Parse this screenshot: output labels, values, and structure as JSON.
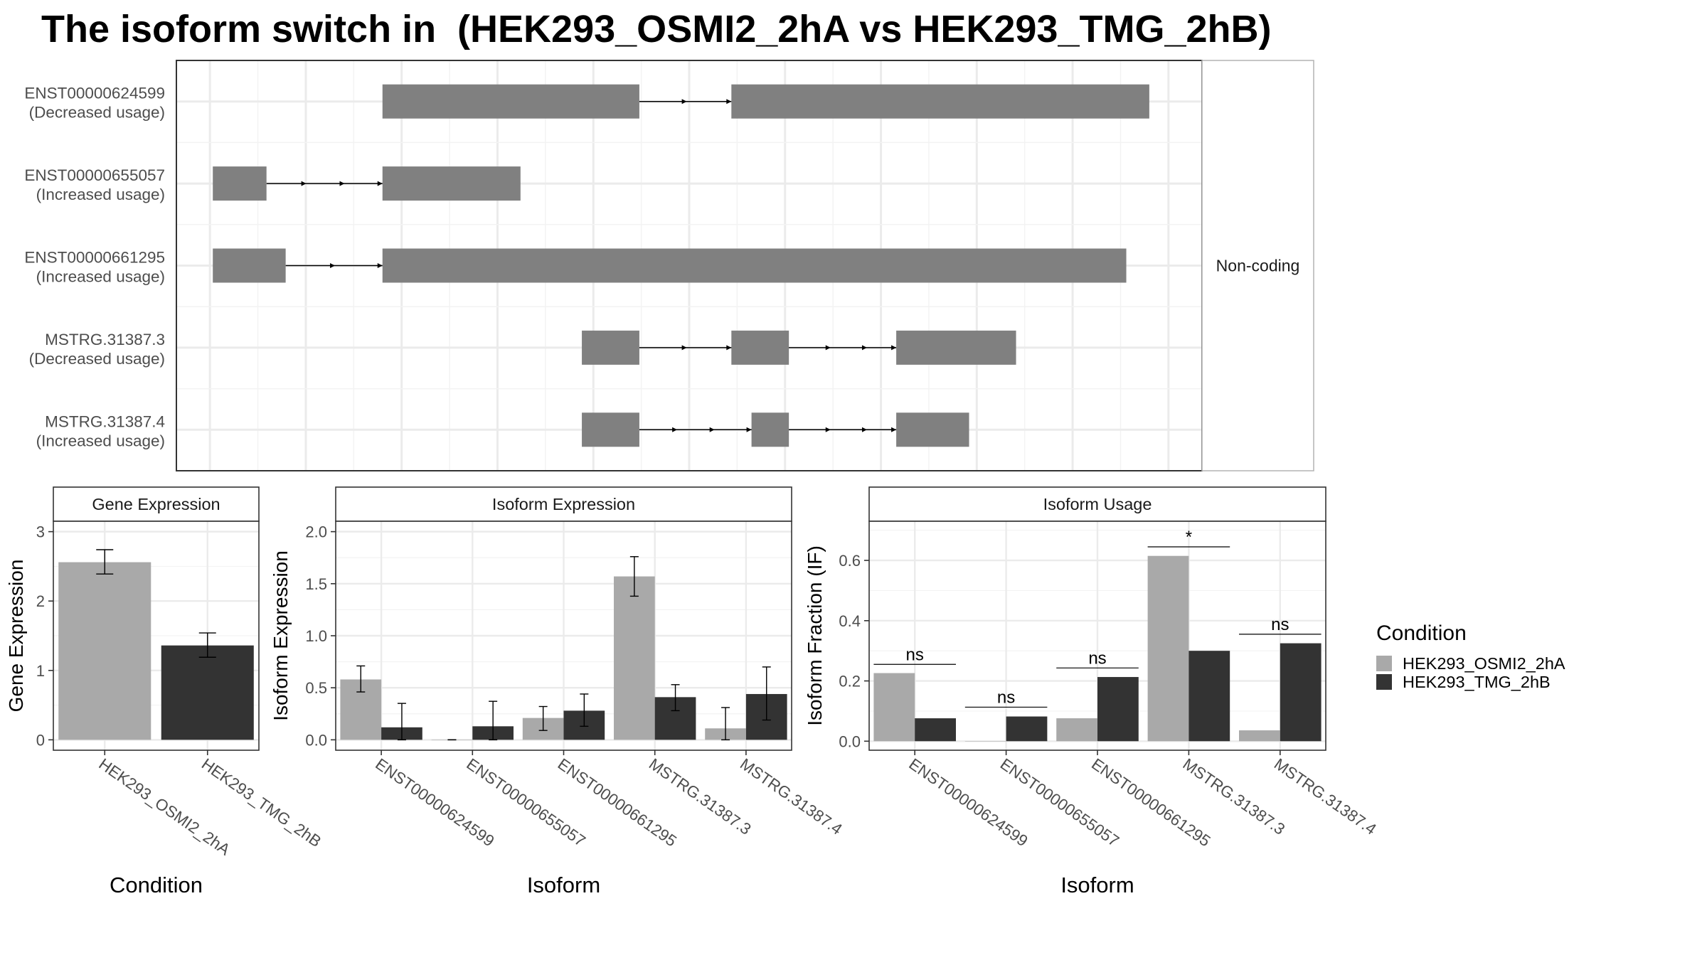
{
  "title": "The isoform switch in  (HEK293_OSMI2_2hA vs HEK293_TMG_2hB)",
  "colors": {
    "exon": "#808080",
    "condition_a": "#a9a9a9",
    "condition_b": "#333333",
    "grid": "#ebebeb",
    "panel_border": "#333333"
  },
  "chart_data": [
    {
      "type": "gene-structure",
      "x_range": [
        0,
        100
      ],
      "strip_label": "Non-coding",
      "transcripts": [
        {
          "id": "ENST00000624599",
          "usage": "(Decreased usage)",
          "exons": [
            [
              18,
              44.8
            ],
            [
              54.4,
              98
            ]
          ],
          "arrows": [
            49.6
          ]
        },
        {
          "id": "ENST00000655057",
          "usage": "(Increased usage)",
          "exons": [
            [
              0.3,
              5.9
            ],
            [
              18,
              32.4
            ]
          ],
          "arrows": [
            9.9,
            13.9
          ]
        },
        {
          "id": "ENST00000661295",
          "usage": "(Increased usage)",
          "exons": [
            [
              0.3,
              7.9
            ],
            [
              18,
              95.6
            ]
          ],
          "arrows": [
            12.9
          ]
        },
        {
          "id": "MSTRG.31387.3",
          "usage": "(Decreased usage)",
          "exons": [
            [
              38.8,
              44.8
            ],
            [
              54.4,
              60.4
            ],
            [
              71.6,
              84.1
            ]
          ],
          "arrows": [
            49.6,
            64.6,
            68.4
          ]
        },
        {
          "id": "MSTRG.31387.4",
          "usage": "(Increased usage)",
          "exons": [
            [
              38.8,
              44.8
            ],
            [
              56.5,
              60.4
            ],
            [
              71.6,
              79.2
            ]
          ],
          "arrows": [
            48.6,
            52.5,
            64.6,
            68.4
          ]
        }
      ]
    },
    {
      "type": "bar",
      "strip": "Gene Expression",
      "ylabel": "Gene Expression",
      "xlabel": "Condition",
      "ylim": [
        -0.15,
        3.15
      ],
      "yticks": [
        0,
        1,
        2,
        3
      ],
      "categories": [
        "HEK293_OSMI2_2hA",
        "HEK293_TMG_2hB"
      ],
      "values": [
        2.56,
        1.36
      ],
      "errors": [
        [
          2.39,
          2.74
        ],
        [
          1.19,
          1.54
        ]
      ]
    },
    {
      "type": "bar",
      "strip": "Isoform Expression",
      "ylabel": "Isoform Expression",
      "xlabel": "Isoform",
      "ylim": [
        -0.1,
        2.1
      ],
      "yticks": [
        0.0,
        0.5,
        1.0,
        1.5,
        2.0
      ],
      "ytick_labels": [
        "0.0",
        "0.5",
        "1.0",
        "1.5",
        "2.0"
      ],
      "categories": [
        "ENST00000624599",
        "ENST00000655057",
        "ENST00000661295",
        "MSTRG.31387.3",
        "MSTRG.31387.4"
      ],
      "series": [
        {
          "name": "HEK293_OSMI2_2hA",
          "values": [
            0.58,
            0.0,
            0.21,
            1.57,
            0.11
          ],
          "errors": [
            [
              0.46,
              0.71
            ],
            [
              0.0,
              0.0
            ],
            [
              0.09,
              0.32
            ],
            [
              1.38,
              1.76
            ],
            [
              0.0,
              0.31
            ]
          ]
        },
        {
          "name": "HEK293_TMG_2hB",
          "values": [
            0.12,
            0.13,
            0.28,
            0.41,
            0.44
          ],
          "errors": [
            [
              0.0,
              0.35
            ],
            [
              0.0,
              0.37
            ],
            [
              0.13,
              0.44
            ],
            [
              0.28,
              0.53
            ],
            [
              0.19,
              0.7
            ]
          ]
        }
      ]
    },
    {
      "type": "bar",
      "strip": "Isoform Usage",
      "ylabel": "Isoform Fraction (IF)",
      "xlabel": "Isoform",
      "ylim": [
        -0.03,
        0.73
      ],
      "yticks": [
        0.0,
        0.2,
        0.4,
        0.6
      ],
      "ytick_labels": [
        "0.0",
        "0.2",
        "0.4",
        "0.6"
      ],
      "categories": [
        "ENST00000624599",
        "ENST00000655057",
        "ENST00000661295",
        "MSTRG.31387.3",
        "MSTRG.31387.4"
      ],
      "series": [
        {
          "name": "HEK293_OSMI2_2hA",
          "values": [
            0.226,
            0.0,
            0.076,
            0.615,
            0.036
          ]
        },
        {
          "name": "HEK293_TMG_2hB",
          "values": [
            0.076,
            0.082,
            0.213,
            0.3,
            0.325
          ]
        }
      ],
      "significance": [
        {
          "label": "ns",
          "y": 0.255
        },
        {
          "label": "ns",
          "y": 0.113
        },
        {
          "label": "ns",
          "y": 0.243
        },
        {
          "label": "*",
          "y": 0.645
        },
        {
          "label": "ns",
          "y": 0.355
        }
      ]
    }
  ],
  "legend": {
    "title": "Condition",
    "placement": "right",
    "entries": [
      "HEK293_OSMI2_2hA",
      "HEK293_TMG_2hB"
    ]
  }
}
